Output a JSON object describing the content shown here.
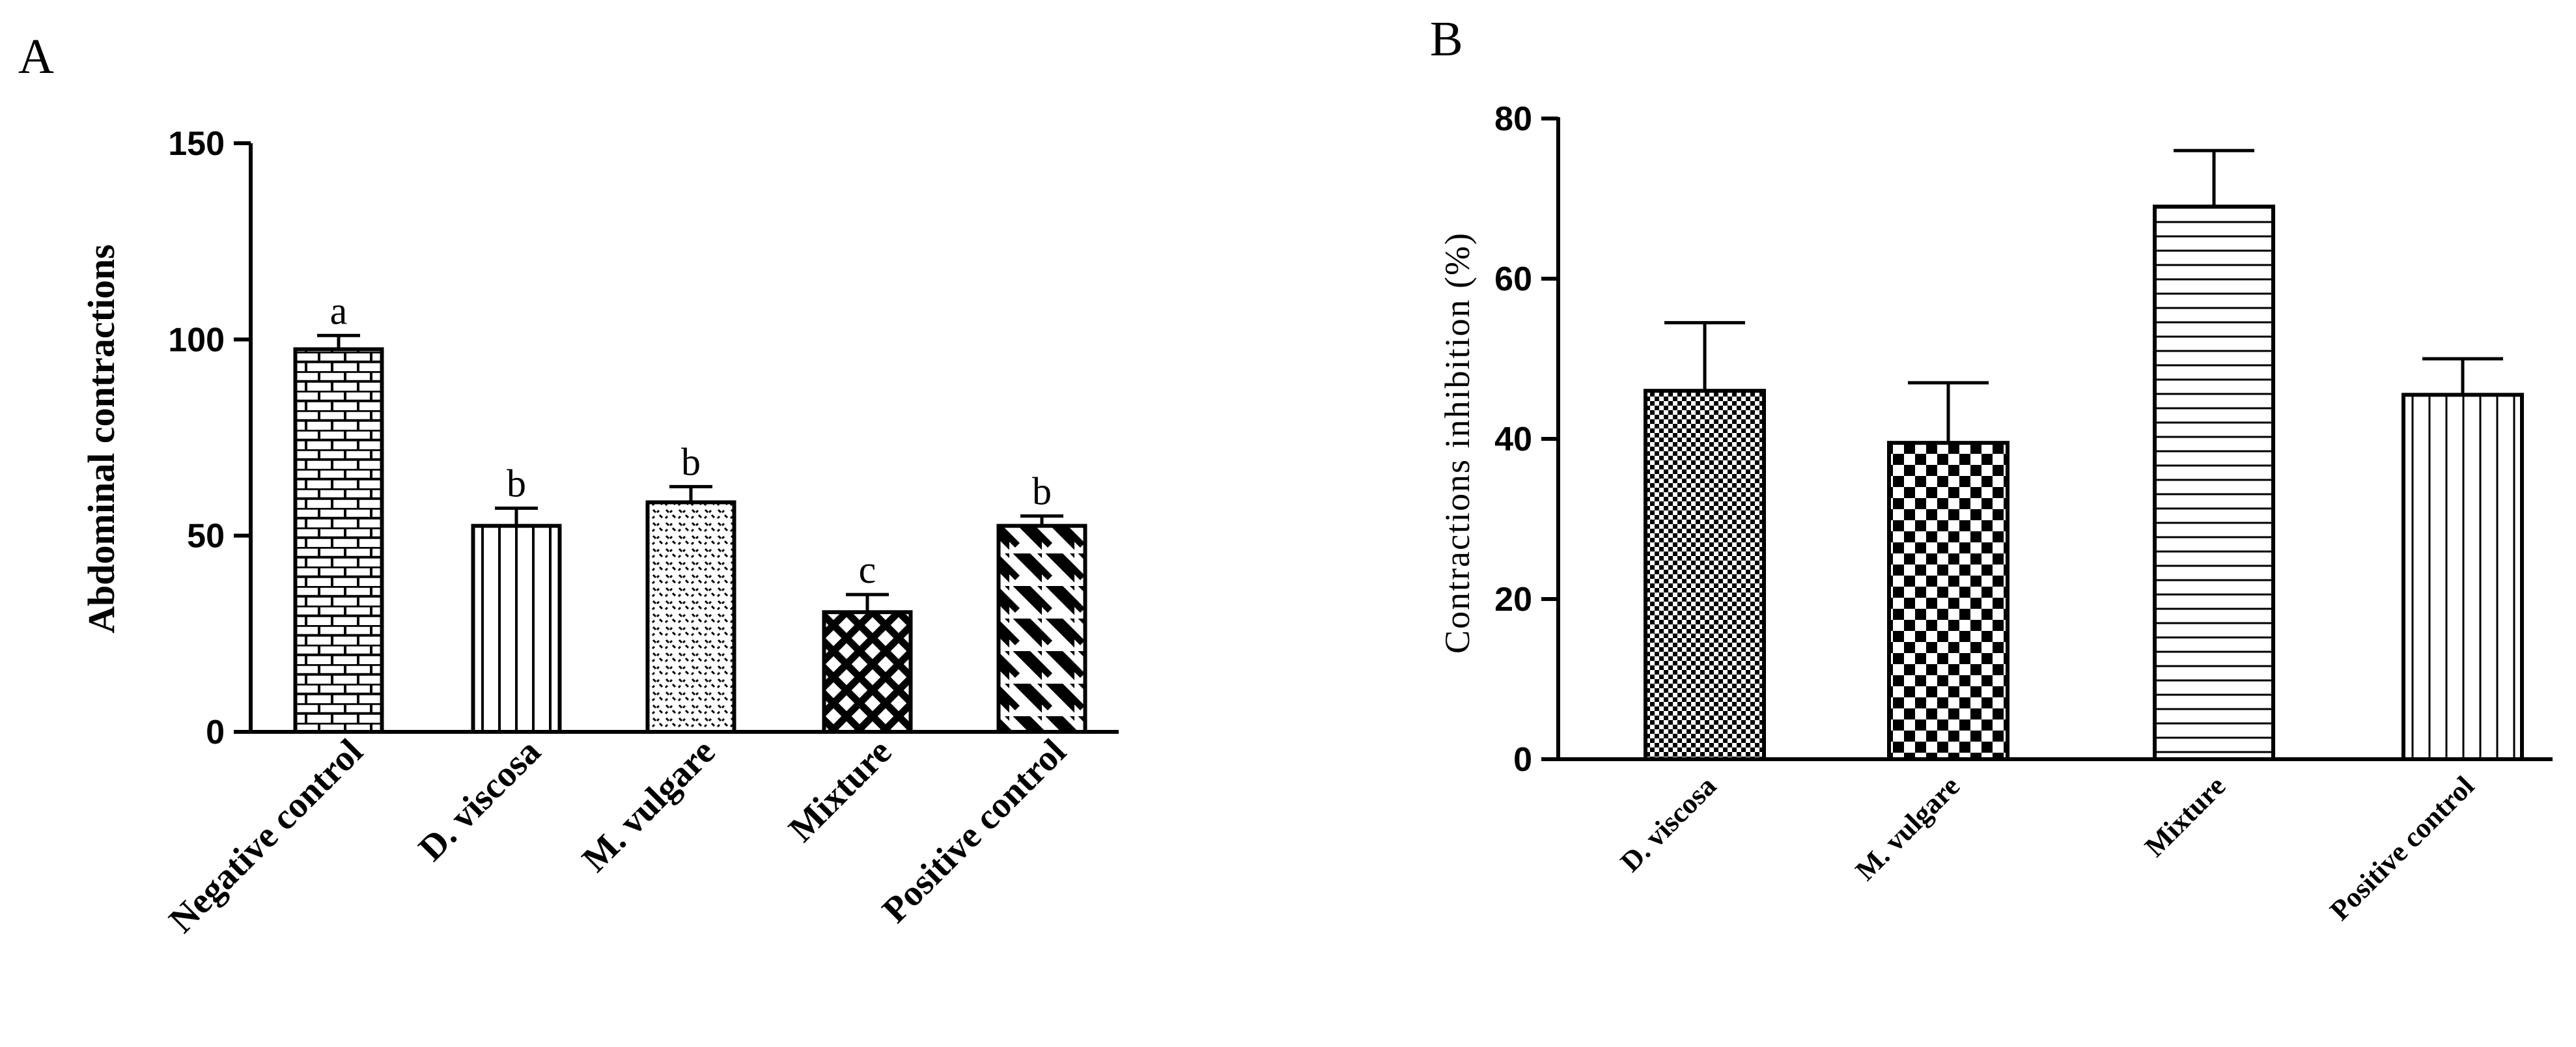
{
  "chart_data": [
    {
      "panel": "A",
      "type": "bar",
      "title": "",
      "xlabel": "",
      "ylabel": "Abdominal contractions",
      "ylim": [
        0,
        150
      ],
      "yticks": [
        "0",
        "50",
        "100",
        "150"
      ],
      "categories": [
        "Negative control",
        "D. viscosa",
        "M. vulgare",
        "Mixture",
        "Positive control"
      ],
      "values": [
        97.5,
        52.5,
        58.5,
        30.5,
        52.5
      ],
      "errors": [
        3.5,
        4.5,
        4.0,
        4.5,
        2.5
      ],
      "letters": [
        "a",
        "b",
        "b",
        "c",
        "b"
      ],
      "patterns": [
        "brick",
        "vertical",
        "dots",
        "crosshatch",
        "diagonal"
      ],
      "grid": false,
      "legend": "none"
    },
    {
      "panel": "B",
      "type": "bar",
      "title": "",
      "xlabel": "",
      "ylabel": "Contractions inhibition (%)",
      "ylim": [
        0,
        80
      ],
      "yticks": [
        "0",
        "20",
        "40",
        "60",
        "80"
      ],
      "categories": [
        "D. viscosa",
        "M. vulgare",
        "Mixture",
        "Positive control"
      ],
      "values": [
        46,
        39.5,
        69,
        45.5
      ],
      "errors": [
        8.5,
        7.5,
        7.0,
        4.5
      ],
      "patterns": [
        "fine-checker",
        "checker",
        "horizontal",
        "vertical"
      ],
      "grid": false,
      "legend": "none"
    }
  ]
}
